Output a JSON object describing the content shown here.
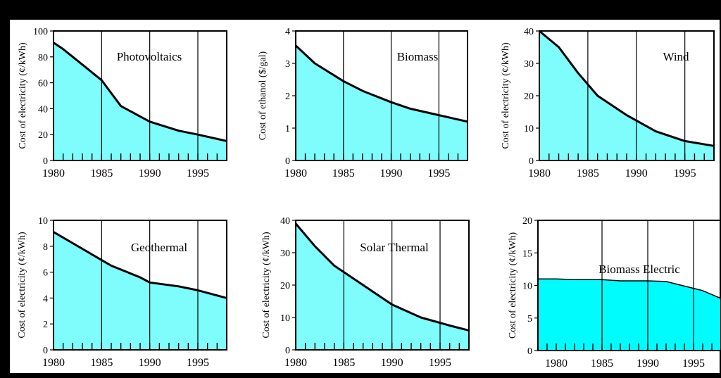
{
  "colors": {
    "frame": "#000000",
    "panel": "#ffffff",
    "fill": "#7ffcfc",
    "fill_alt": "#00fcfc",
    "line": "#000000"
  },
  "chart_data": [
    {
      "type": "area",
      "title": "Photovoltaics",
      "ylabel": "Cost of electricity (¢/kWh)",
      "xlim": [
        1980,
        1998
      ],
      "ylim": [
        0,
        100
      ],
      "xticks": [
        1980,
        1985,
        1990,
        1995
      ],
      "yticks": [
        0,
        20,
        40,
        60,
        80,
        100
      ],
      "x": [
        1980,
        1981,
        1983,
        1985,
        1987,
        1990,
        1993,
        1995,
        1998
      ],
      "values": [
        91,
        86,
        74,
        62,
        42,
        30,
        23,
        20,
        15
      ]
    },
    {
      "type": "area",
      "title": "Biomass",
      "ylabel": "Cost of ethanol ($/gal)",
      "xlim": [
        1980,
        1998
      ],
      "ylim": [
        0,
        4
      ],
      "xticks": [
        1980,
        1985,
        1990,
        1995
      ],
      "yticks": [
        0,
        1,
        2,
        3,
        4
      ],
      "x": [
        1980,
        1982,
        1985,
        1987,
        1990,
        1992,
        1995,
        1998
      ],
      "values": [
        3.55,
        3.0,
        2.45,
        2.15,
        1.8,
        1.6,
        1.4,
        1.2
      ]
    },
    {
      "type": "area",
      "title": "Wind",
      "ylabel": "Cost of electricity (¢/kWh)",
      "xlim": [
        1980,
        1998
      ],
      "ylim": [
        0,
        40
      ],
      "xticks": [
        1980,
        1985,
        1990,
        1995
      ],
      "yticks": [
        0,
        10,
        20,
        30,
        40
      ],
      "x": [
        1980,
        1982,
        1984,
        1986,
        1989,
        1992,
        1995,
        1998
      ],
      "values": [
        40,
        35,
        27,
        20,
        14,
        9,
        6,
        4.5
      ]
    },
    {
      "type": "area",
      "title": "Geothermal",
      "ylabel": "Cost of electricity (¢/kWh)",
      "xlim": [
        1980,
        1998
      ],
      "ylim": [
        0,
        10
      ],
      "xticks": [
        1980,
        1985,
        1990,
        1995
      ],
      "yticks": [
        0,
        2,
        4,
        6,
        8,
        10
      ],
      "x": [
        1980,
        1983,
        1986,
        1989,
        1990,
        1993,
        1995,
        1998
      ],
      "values": [
        9.1,
        7.8,
        6.5,
        5.6,
        5.2,
        4.9,
        4.6,
        4.0
      ]
    },
    {
      "type": "area",
      "title": "Solar Thermal",
      "ylabel": "Cost of electricity (¢/kWh)",
      "xlim": [
        1980,
        1998
      ],
      "ylim": [
        0,
        40
      ],
      "xticks": [
        1980,
        1985,
        1990,
        1995
      ],
      "yticks": [
        0,
        10,
        20,
        30,
        40
      ],
      "x": [
        1980,
        1982,
        1984,
        1987,
        1990,
        1993,
        1996,
        1998
      ],
      "values": [
        39,
        32,
        26,
        20,
        14,
        10,
        7.5,
        6
      ]
    },
    {
      "type": "area",
      "title": "Biomass Electric",
      "ylabel": "Cost of electricity (¢/kWh)",
      "xlim": [
        1978,
        1998
      ],
      "ylim": [
        0,
        20
      ],
      "xticks": [
        1980,
        1985,
        1990,
        1995
      ],
      "yticks": [
        0,
        5,
        10,
        15,
        20
      ],
      "x": [
        1978,
        1980,
        1982,
        1985,
        1987,
        1990,
        1992,
        1994,
        1996,
        1998
      ],
      "values": [
        11,
        11,
        10.9,
        10.9,
        10.7,
        10.7,
        10.6,
        9.9,
        9.2,
        8.0
      ]
    }
  ]
}
